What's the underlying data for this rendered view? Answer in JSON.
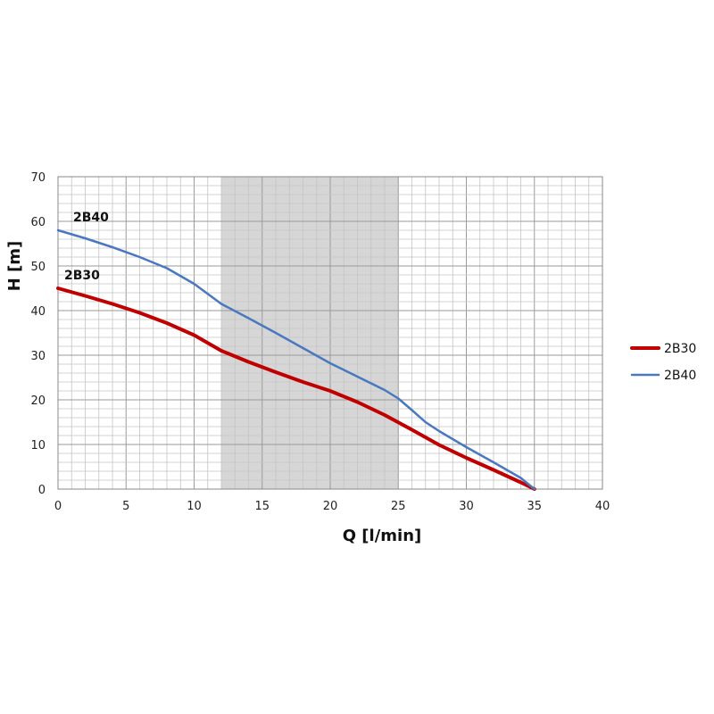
{
  "chart_data": {
    "type": "line",
    "xlabel": "Q [l/min]",
    "ylabel": "H [m]",
    "xlim": [
      0,
      40
    ],
    "ylim": [
      0,
      70
    ],
    "x_ticks": [
      0,
      5,
      10,
      15,
      20,
      25,
      30,
      35,
      40
    ],
    "y_ticks": [
      0,
      10,
      20,
      30,
      40,
      50,
      60,
      70
    ],
    "grid": true,
    "minor_grid_step_x": 1,
    "minor_grid_step_y": 2,
    "shaded_range_x": [
      12,
      25
    ],
    "shaded_color": "#d6d6d6",
    "legend_position": "right",
    "series": [
      {
        "name": "2B30",
        "color": "#c00000",
        "line_width": 4,
        "points": [
          [
            0,
            45
          ],
          [
            2,
            43.3
          ],
          [
            4,
            41.5
          ],
          [
            6,
            39.5
          ],
          [
            8,
            37.2
          ],
          [
            10,
            34.5
          ],
          [
            12,
            31
          ],
          [
            14,
            28.5
          ],
          [
            16,
            26.2
          ],
          [
            18,
            24
          ],
          [
            20,
            22
          ],
          [
            22,
            19.5
          ],
          [
            24,
            16.6
          ],
          [
            26,
            13.3
          ],
          [
            28,
            9.9
          ],
          [
            30,
            7
          ],
          [
            32,
            4.3
          ],
          [
            34,
            1.5
          ],
          [
            35,
            0
          ]
        ]
      },
      {
        "name": "2B40",
        "color": "#4a78c0",
        "line_width": 2.5,
        "points": [
          [
            0,
            58
          ],
          [
            2,
            56.2
          ],
          [
            4,
            54.2
          ],
          [
            6,
            52
          ],
          [
            8,
            49.5
          ],
          [
            10,
            46
          ],
          [
            12,
            41.5
          ],
          [
            14,
            38.3
          ],
          [
            16,
            35
          ],
          [
            18,
            31.6
          ],
          [
            20,
            28.2
          ],
          [
            22,
            25.2
          ],
          [
            24,
            22.2
          ],
          [
            25,
            20.3
          ],
          [
            26,
            17.7
          ],
          [
            27,
            15
          ],
          [
            28,
            13
          ],
          [
            30,
            9.4
          ],
          [
            32,
            6
          ],
          [
            34,
            2.5
          ],
          [
            35,
            0
          ]
        ]
      }
    ]
  }
}
